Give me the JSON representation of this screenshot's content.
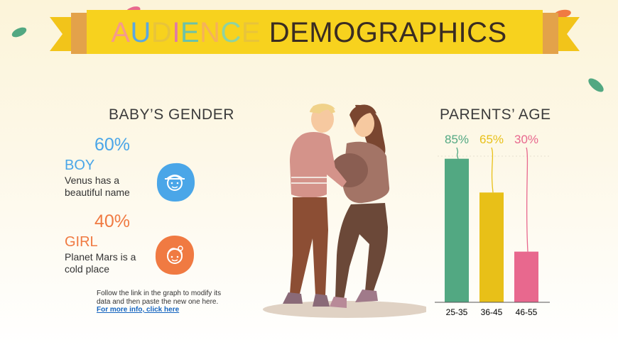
{
  "title": {
    "part1": "AUDIENCE",
    "part2": "DEMOGRAPHICS"
  },
  "title_letter_colors": [
    "#f59b8a",
    "#5aa8e0",
    "#e8c43a",
    "#e07aa8",
    "#6cc2a8",
    "#f5b25a",
    "#8fd3a0",
    "#e8c43a"
  ],
  "gender": {
    "heading": "BABY’S GENDER",
    "boy": {
      "percent": "60%",
      "label": "BOY",
      "desc_line1": "Venus has a",
      "desc_line2": "beautiful name",
      "color": "#4aa6e8",
      "icon": "baby-boy-icon"
    },
    "girl": {
      "percent": "40%",
      "label": "GIRL",
      "desc_line1": "Planet Mars is a",
      "desc_line2": "cold place",
      "color": "#f07a42",
      "icon": "baby-girl-icon"
    }
  },
  "note": {
    "line1": "Follow the link in the graph to modify its",
    "line2": "data and then paste the new one here.",
    "link": "For more info, click here"
  },
  "illustration": {
    "icon": "pregnant-couple-illustration"
  },
  "chart_data": {
    "type": "bar",
    "title": "PARENTS’ AGE",
    "categories": [
      "25-35",
      "36-45",
      "46-55"
    ],
    "values": [
      85,
      65,
      30
    ],
    "value_labels": [
      "85%",
      "65%",
      "30%"
    ],
    "colors": [
      "#52a882",
      "#e8c018",
      "#e8688e"
    ],
    "ylim": [
      0,
      100
    ]
  }
}
